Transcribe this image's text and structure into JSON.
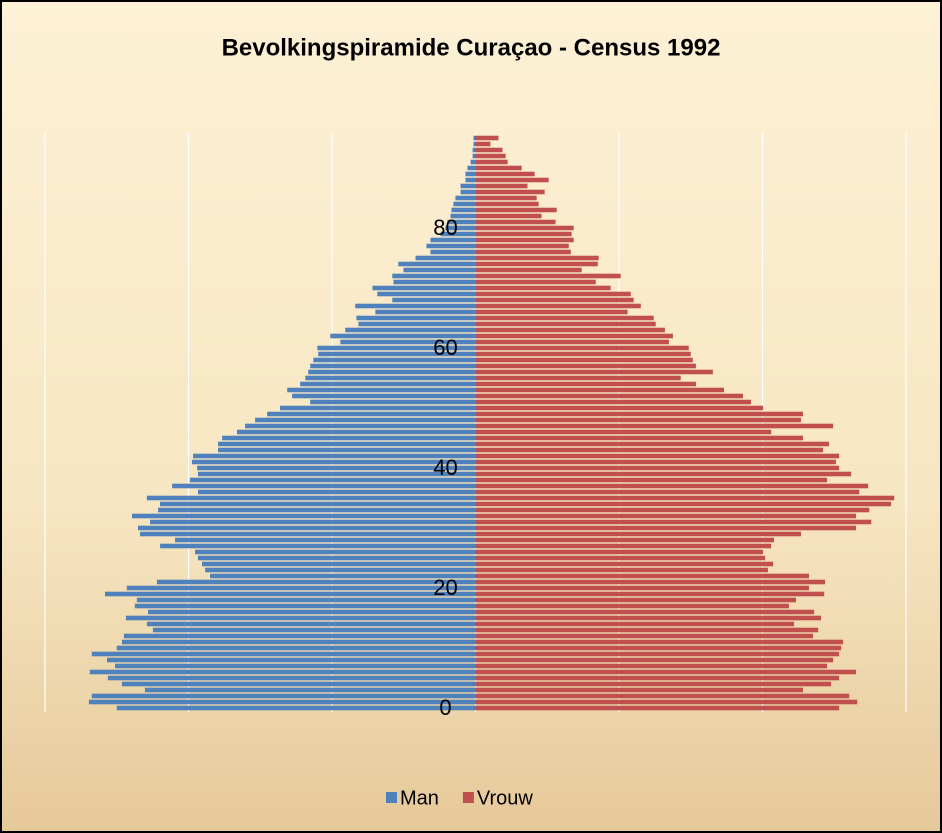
{
  "chart_data": {
    "type": "pyramid",
    "title": "Bevolkingspiramide Curaçao - Census 1992",
    "categories": [
      "0",
      null,
      null,
      null,
      null,
      null,
      null,
      null,
      null,
      null,
      null,
      null,
      null,
      null,
      null,
      null,
      null,
      null,
      null,
      null,
      "20",
      null,
      null,
      null,
      null,
      null,
      null,
      null,
      null,
      null,
      null,
      null,
      null,
      null,
      null,
      null,
      null,
      null,
      null,
      null,
      "40",
      null,
      null,
      null,
      null,
      null,
      null,
      null,
      null,
      null,
      null,
      null,
      null,
      null,
      null,
      null,
      null,
      null,
      null,
      null,
      "60",
      null,
      null,
      null,
      null,
      null,
      null,
      null,
      null,
      null,
      null,
      null,
      null,
      null,
      null,
      null,
      null,
      null,
      null,
      null,
      "80",
      null,
      null,
      null,
      null,
      null,
      null,
      null,
      null,
      null,
      null,
      null,
      null,
      null,
      null,
      null
    ],
    "series": [
      {
        "name": "Man",
        "color": "#4f81bd",
        "values": [
          -1250,
          -1347,
          -1337,
          -1152,
          -1232,
          -1281,
          -1344,
          -1256,
          -1284,
          -1337,
          -1250,
          -1232,
          -1225,
          -1124,
          -1145,
          -1218,
          -1141,
          -1187,
          -1180,
          -1291,
          -1215,
          -1110,
          -925,
          -942,
          -953,
          -967,
          -977,
          -1099,
          -1047,
          -1169,
          -1176,
          -1134,
          -1197,
          -1106,
          -1099,
          -1145,
          -967,
          -1057,
          -995,
          -967,
          -970,
          -988,
          -984,
          -897,
          -897,
          -883,
          -831,
          -803,
          -768,
          -726,
          -681,
          -576,
          -639,
          -656,
          -611,
          -593,
          -583,
          -576,
          -565,
          -548,
          -551,
          -471,
          -506,
          -454,
          -408,
          -415,
          -349,
          -419,
          -290,
          -342,
          -359,
          -286,
          -290,
          -251,
          -269,
          -209,
          -157,
          -171,
          -157,
          -122,
          -105,
          -98,
          -87,
          -84,
          -77,
          -70,
          -52,
          -52,
          -35,
          -35,
          -28,
          -17,
          -10,
          -10,
          -7,
          -7
        ]
      },
      {
        "name": "Vrouw",
        "color": "#c0504d",
        "values": [
          1267,
          1330,
          1302,
          1141,
          1239,
          1267,
          1326,
          1225,
          1246,
          1267,
          1274,
          1281,
          1176,
          1194,
          1110,
          1204,
          1180,
          1092,
          1117,
          1215,
          1162,
          1218,
          1162,
          1019,
          1037,
          1009,
          1002,
          1030,
          1040,
          1134,
          1326,
          1379,
          1326,
          1372,
          1448,
          1459,
          1337,
          1368,
          1225,
          1309,
          1267,
          1256,
          1267,
          1211,
          1232,
          1141,
          1030,
          1246,
          1134,
          1141,
          1002,
          960,
          932,
          866,
          768,
          715,
          827,
          768,
          757,
          750,
          743,
          674,
          688,
          660,
          628,
          621,
          530,
          576,
          551,
          541,
          471,
          419,
          506,
          370,
          426,
          429,
          332,
          325,
          342,
          335,
          342,
          279,
          230,
          283,
          220,
          213,
          241,
          181,
          255,
          206,
          161,
          112,
          105,
          94,
          52,
          80
        ]
      }
    ],
    "xlim": [
      -1500,
      1500
    ],
    "xticks": [
      -1500,
      -1000,
      -500,
      0,
      500,
      1000,
      1500
    ],
    "grid": true,
    "legend": "bottom"
  }
}
